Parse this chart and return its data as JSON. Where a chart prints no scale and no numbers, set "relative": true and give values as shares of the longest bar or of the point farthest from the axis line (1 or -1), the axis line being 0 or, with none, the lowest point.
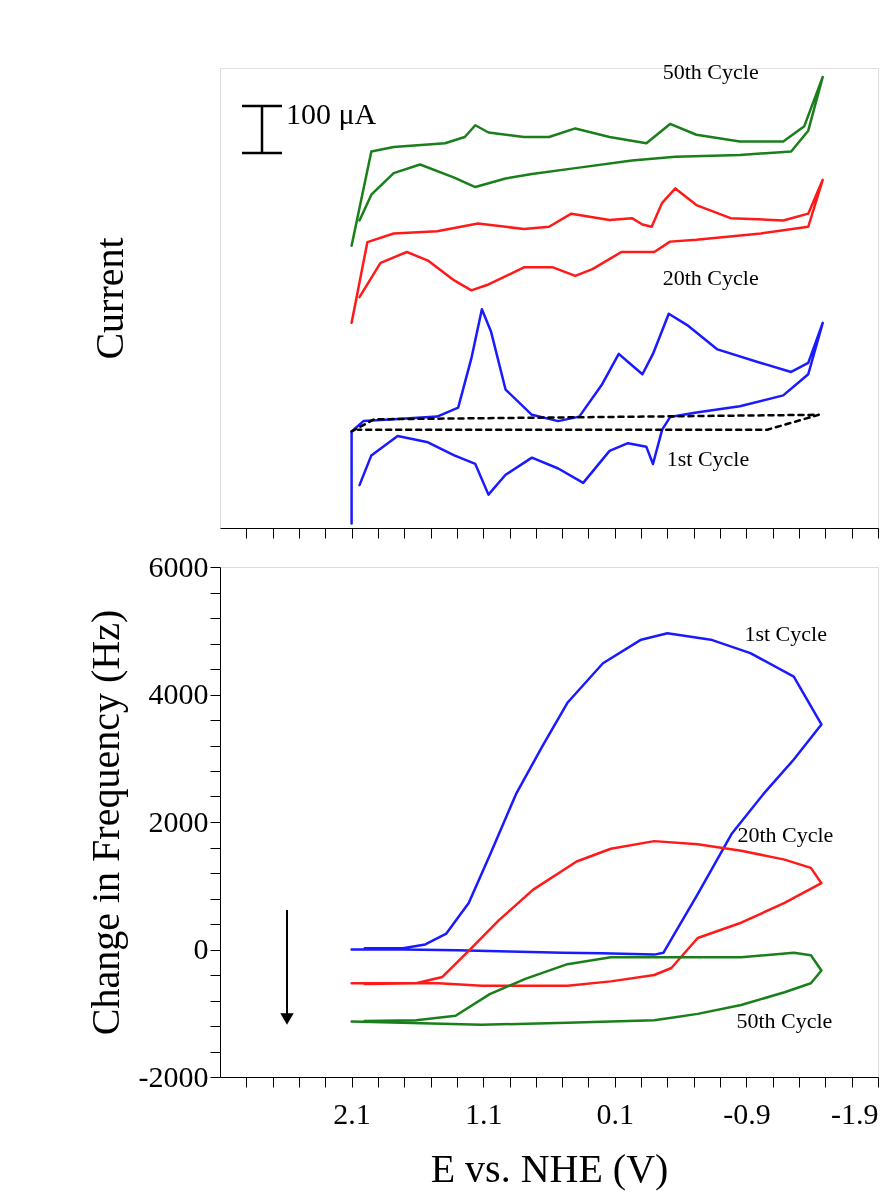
{
  "chart_data": [
    {
      "type": "line",
      "relative": true,
      "ylabel": "Current",
      "annotations": [
        "100 μA"
      ],
      "xlim": [
        3.1,
        -1.9
      ],
      "xticks": [
        {
          "value": 2.9,
          "label": null
        },
        {
          "value": 2.7,
          "label": null
        },
        {
          "value": 2.5,
          "label": null
        },
        {
          "value": 2.3,
          "label": null
        },
        2.1,
        {
          "value": 1.9,
          "label": null
        },
        {
          "value": 1.7,
          "label": null
        },
        {
          "value": 1.5,
          "label": null
        },
        {
          "value": 1.3,
          "label": null
        },
        1.1,
        {
          "value": 0.9,
          "label": null
        },
        {
          "value": 0.7,
          "label": null
        },
        {
          "value": 0.5,
          "label": null
        },
        {
          "value": 0.3,
          "label": null
        },
        0.1,
        {
          "value": -0.1,
          "label": null
        },
        {
          "value": -0.3,
          "label": null
        },
        {
          "value": -0.5,
          "label": null
        },
        {
          "value": -0.7,
          "label": null
        },
        -0.9,
        {
          "value": -1.1,
          "label": null
        },
        {
          "value": -1.3,
          "label": null
        },
        {
          "value": -1.5,
          "label": null
        },
        {
          "value": -1.7,
          "label": null
        },
        -1.9
      ],
      "tick_labels": false,
      "grid": false,
      "marker": "none",
      "series": [
        {
          "name": "50th Cycle",
          "color": "#1a7f1a",
          "x": [
            2.1,
            1.95,
            1.78,
            1.39,
            1.24,
            1.16,
            1.06,
            0.79,
            0.6,
            0.4,
            0.14,
            -0.14,
            -0.32,
            -0.52,
            -0.85,
            -1.18,
            -1.34,
            -1.48,
            -1.37,
            -1.24,
            -0.85,
            -0.36,
            -0.03,
            0.4,
            0.73,
            0.93,
            1.16,
            1.32,
            1.58,
            1.78,
            1.95,
            2.04
          ],
          "values": [
            0.626,
            0.835,
            0.845,
            0.853,
            0.867,
            0.893,
            0.877,
            0.867,
            0.867,
            0.886,
            0.867,
            0.853,
            0.896,
            0.872,
            0.857,
            0.857,
            0.891,
            1.0,
            0.881,
            0.835,
            0.827,
            0.823,
            0.815,
            0.798,
            0.785,
            0.775,
            0.756,
            0.777,
            0.806,
            0.787,
            0.739,
            0.682
          ]
        },
        {
          "name": "20th Cycle",
          "color": "#ff1a1a",
          "x": [
            2.1,
            1.98,
            1.78,
            1.45,
            1.14,
            0.79,
            0.6,
            0.43,
            0.14,
            -0.03,
            -0.11,
            -0.18,
            -0.26,
            -0.36,
            -0.52,
            -0.78,
            -1.18,
            -1.37,
            -1.48,
            -1.37,
            -1.01,
            -0.52,
            -0.32,
            -0.2,
            0.05,
            0.27,
            0.4,
            0.57,
            0.79,
            1.06,
            1.19,
            1.32,
            1.52,
            1.68,
            1.88,
            2.04
          ],
          "values": [
            0.455,
            0.634,
            0.653,
            0.658,
            0.675,
            0.663,
            0.668,
            0.697,
            0.683,
            0.687,
            0.673,
            0.668,
            0.721,
            0.753,
            0.716,
            0.687,
            0.682,
            0.697,
            0.772,
            0.668,
            0.653,
            0.639,
            0.635,
            0.612,
            0.612,
            0.574,
            0.559,
            0.578,
            0.578,
            0.54,
            0.527,
            0.549,
            0.593,
            0.612,
            0.588,
            0.512
          ]
        },
        {
          "name": "1st Cycle",
          "color": "#1a1aff",
          "x": [
            2.1,
            2.1,
            2.01,
            1.78,
            1.45,
            1.29,
            1.19,
            1.11,
            1.04,
            0.93,
            0.73,
            0.53,
            0.37,
            0.2,
            0.07,
            -0.01,
            -0.11,
            -0.19,
            -0.31,
            -0.45,
            -0.68,
            -1.01,
            -1.24,
            -1.37,
            -1.48,
            -1.37,
            -1.18,
            -0.85,
            -0.52,
            -0.32,
            -0.26,
            -0.19,
            -0.14,
            0.0,
            0.14,
            0.34,
            0.53,
            0.73,
            0.93,
            1.06,
            1.16,
            1.32,
            1.52,
            1.75,
            1.95,
            2.04
          ],
          "values": [
            0.01,
            0.214,
            0.237,
            0.241,
            0.247,
            0.267,
            0.376,
            0.485,
            0.435,
            0.307,
            0.251,
            0.237,
            0.247,
            0.317,
            0.386,
            0.366,
            0.341,
            0.386,
            0.475,
            0.45,
            0.396,
            0.366,
            0.346,
            0.366,
            0.455,
            0.341,
            0.294,
            0.27,
            0.256,
            0.246,
            0.218,
            0.142,
            0.18,
            0.188,
            0.171,
            0.1,
            0.132,
            0.156,
            0.118,
            0.074,
            0.142,
            0.161,
            0.19,
            0.204,
            0.161,
            0.095
          ]
        },
        {
          "color": "#000000",
          "line_style": "dashed",
          "x": [
            2.1,
            1.93,
            -1.45,
            -1.06,
            2.05
          ],
          "values": [
            0.214,
            0.241,
            0.251,
            0.218,
            0.218
          ]
        }
      ]
    },
    {
      "type": "line",
      "xlabel": "E vs. NHE (V)",
      "ylabel": "Change in Frequency (Hz)",
      "xlim": [
        3.1,
        -1.9
      ],
      "ylim": [
        -2000,
        6000
      ],
      "xticks": [
        {
          "value": 2.9,
          "label": null
        },
        {
          "value": 2.7,
          "label": null
        },
        {
          "value": 2.5,
          "label": null
        },
        {
          "value": 2.3,
          "label": null
        },
        2.1,
        {
          "value": 1.9,
          "label": null
        },
        {
          "value": 1.7,
          "label": null
        },
        {
          "value": 1.5,
          "label": null
        },
        {
          "value": 1.3,
          "label": null
        },
        1.1,
        {
          "value": 0.9,
          "label": null
        },
        {
          "value": 0.7,
          "label": null
        },
        {
          "value": 0.5,
          "label": null
        },
        {
          "value": 0.3,
          "label": null
        },
        0.1,
        {
          "value": -0.1,
          "label": null
        },
        {
          "value": -0.3,
          "label": null
        },
        {
          "value": -0.5,
          "label": null
        },
        {
          "value": -0.7,
          "label": null
        },
        -0.9,
        {
          "value": -1.1,
          "label": null
        },
        {
          "value": -1.3,
          "label": null
        },
        {
          "value": -1.5,
          "label": null
        },
        {
          "value": -1.7,
          "label": null
        },
        -1.9
      ],
      "yticks": [
        -2000,
        {
          "value": -1600,
          "label": null
        },
        {
          "value": -1200,
          "label": null
        },
        {
          "value": -800,
          "label": null
        },
        {
          "value": -400,
          "label": null
        },
        0,
        {
          "value": 400,
          "label": null
        },
        {
          "value": 800,
          "label": null
        },
        {
          "value": 1200,
          "label": null
        },
        {
          "value": 1600,
          "label": null
        },
        2000,
        {
          "value": 2400,
          "label": null
        },
        {
          "value": 2800,
          "label": null
        },
        {
          "value": 3200,
          "label": null
        },
        {
          "value": 3600,
          "label": null
        },
        4000,
        {
          "value": 4400,
          "label": null
        },
        {
          "value": 4800,
          "label": null
        },
        {
          "value": 5200,
          "label": null
        },
        {
          "value": 5600,
          "label": null
        },
        6000
      ],
      "grid": false,
      "marker": "none",
      "series": [
        {
          "name": "1st Cycle",
          "color": "#1a1aff",
          "x": [
            2.1,
            1.7,
            1.3,
            0.9,
            0.5,
            0.2,
            -0.2,
            -0.27,
            -0.53,
            -0.79,
            -1.03,
            -1.26,
            -1.47,
            -1.26,
            -0.93,
            -0.63,
            -0.3,
            -0.1,
            0.19,
            0.46,
            0.65,
            0.85,
            1.05,
            1.21,
            1.38,
            1.54,
            1.71,
            2.0
          ],
          "values": [
            0,
            0,
            -10,
            -30,
            -50,
            -60,
            -80,
            -50,
            870,
            1820,
            2440,
            2980,
            3530,
            4280,
            4650,
            4860,
            4960,
            4860,
            4490,
            3870,
            3190,
            2440,
            1480,
            730,
            250,
            80,
            20,
            20
          ]
        },
        {
          "name": "20th Cycle",
          "color": "#ff1a1a",
          "x": [
            2.1,
            1.44,
            1.11,
            0.46,
            0.13,
            -0.2,
            -0.33,
            -0.53,
            -0.86,
            -1.19,
            -1.47,
            -1.39,
            -1.19,
            -0.86,
            -0.53,
            -0.2,
            0.13,
            0.39,
            0.72,
            0.98,
            1.21,
            1.41,
            1.61,
            2.0
          ],
          "values": [
            -530,
            -530,
            -570,
            -570,
            -500,
            -400,
            -290,
            180,
            420,
            730,
            1040,
            1280,
            1410,
            1550,
            1650,
            1700,
            1580,
            1380,
            940,
            460,
            -20,
            -430,
            -530,
            -540
          ]
        },
        {
          "name": "50th Cycle",
          "color": "#1a7f1a",
          "x": [
            2.1,
            1.11,
            0.46,
            -0.2,
            -0.53,
            -0.86,
            -1.19,
            -1.39,
            -1.47,
            -1.39,
            -1.26,
            -0.86,
            -0.53,
            -0.2,
            0.13,
            0.46,
            0.78,
            1.05,
            1.31,
            1.61,
            2.0
          ],
          "values": [
            -1130,
            -1180,
            -1150,
            -1110,
            -1010,
            -870,
            -670,
            -530,
            -330,
            -90,
            -50,
            -120,
            -120,
            -120,
            -120,
            -230,
            -460,
            -700,
            -1040,
            -1110,
            -1120
          ]
        }
      ]
    }
  ]
}
